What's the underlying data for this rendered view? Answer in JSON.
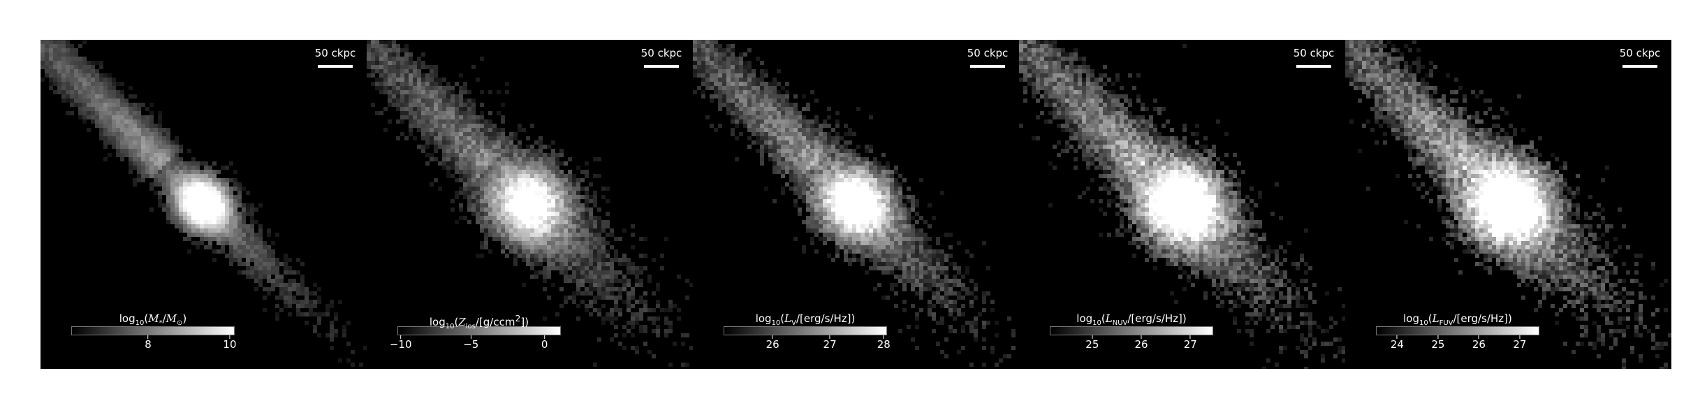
{
  "scale_label": "50 ckpc",
  "panels": [
    {
      "id": "stellar-mass",
      "label_html": "log<sub>10</sub>(<i>M</i><sub>*</sub>/<i>M</i><sub>⊙</sub>)",
      "ticks": [
        {
          "text": "8",
          "frac": 0.47
        },
        {
          "text": "10",
          "frac": 0.97
        }
      ],
      "brightness": 0.85,
      "spread": 0.6,
      "noise": 0.25
    },
    {
      "id": "metallicity",
      "label_html": "log<sub>10</sub>(<i>Z</i><sub>los</sub>/[g/ccm<sup>2</sup>])",
      "ticks": [
        {
          "text": "−10",
          "frac": 0.02
        },
        {
          "text": "−5",
          "frac": 0.45
        },
        {
          "text": "0",
          "frac": 0.9
        }
      ],
      "brightness": 0.7,
      "spread": 1.0,
      "noise": 0.45
    },
    {
      "id": "luminosity-v",
      "label_html": "log<sub>10</sub>(<i>L</i><sub>V</sub>/[erg/s/Hz])",
      "ticks": [
        {
          "text": "26",
          "frac": 0.3
        },
        {
          "text": "27",
          "frac": 0.65
        },
        {
          "text": "28",
          "frac": 0.98
        }
      ],
      "brightness": 0.8,
      "spread": 0.9,
      "noise": 0.5
    },
    {
      "id": "luminosity-nuv",
      "label_html": "log<sub>10</sub>(<i>L</i><sub>NUV</sub>/[erg/s/Hz])",
      "ticks": [
        {
          "text": "25",
          "frac": 0.26
        },
        {
          "text": "26",
          "frac": 0.56
        },
        {
          "text": "27",
          "frac": 0.86
        }
      ],
      "brightness": 0.9,
      "spread": 1.05,
      "noise": 0.6
    },
    {
      "id": "luminosity-fuv",
      "label_html": "log<sub>10</sub>(<i>L</i><sub>FUV</sub>/[erg/s/Hz])",
      "ticks": [
        {
          "text": "24",
          "frac": 0.13
        },
        {
          "text": "25",
          "frac": 0.38
        },
        {
          "text": "26",
          "frac": 0.63
        },
        {
          "text": "27",
          "frac": 0.88
        }
      ],
      "brightness": 0.9,
      "spread": 1.1,
      "noise": 0.65
    }
  ]
}
